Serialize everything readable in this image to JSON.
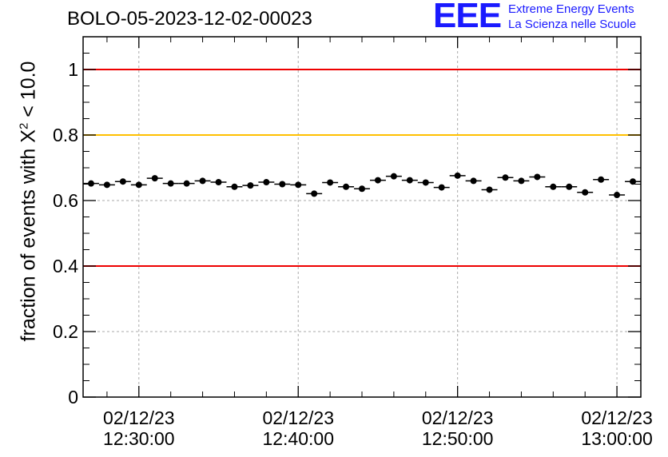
{
  "page_title": "BOLO-05-2023-12-02-00023",
  "logo": {
    "mark": "EEE",
    "line1": "Extreme Energy Events",
    "line2": "La Scienza nelle Scuole"
  },
  "y_axis_label": {
    "prefix": "fraction of events with X",
    "sup": "2",
    "suffix": " < 10.0"
  },
  "colors": {
    "red_line": "#ee0000",
    "yellow_line": "#ffc000",
    "markers": "#000000"
  },
  "chart_data": {
    "type": "scatter",
    "title": "BOLO-05-2023-12-02-00023",
    "xlabel": "",
    "ylabel": "fraction of events with X^2 < 10.0",
    "ylim": [
      0,
      1.1
    ],
    "xlim_minutes": [
      -3.5,
      31.5
    ],
    "grid": true,
    "x_tick_minutes": [
      0,
      10,
      20,
      30
    ],
    "x_tick_labels": [
      {
        "date": "02/12/23",
        "time": "12:30:00"
      },
      {
        "date": "02/12/23",
        "time": "12:40:00"
      },
      {
        "date": "02/12/23",
        "time": "12:50:00"
      },
      {
        "date": "02/12/23",
        "time": "13:00:00"
      }
    ],
    "y_ticks": [
      0,
      0.2,
      0.4,
      0.6,
      0.8,
      1
    ],
    "y_tick_labels": [
      "0",
      "0.2",
      "0.4",
      "0.6",
      "0.8",
      "1"
    ],
    "reference_lines": [
      {
        "y": 1.0,
        "color": "red"
      },
      {
        "y": 0.8,
        "color": "yellow"
      },
      {
        "y": 0.4,
        "color": "red"
      }
    ],
    "bin_width_minutes": 1,
    "series": [
      {
        "name": "fraction",
        "x_minutes": [
          -3,
          -2,
          -1,
          0,
          1,
          2,
          3,
          4,
          5,
          6,
          7,
          8,
          9,
          10,
          11,
          12,
          13,
          14,
          15,
          16,
          17,
          18,
          19,
          20,
          21,
          22,
          23,
          24,
          25,
          26,
          27,
          28,
          29,
          30,
          31
        ],
        "values": [
          0.652,
          0.648,
          0.658,
          0.648,
          0.668,
          0.652,
          0.652,
          0.66,
          0.656,
          0.642,
          0.646,
          0.656,
          0.65,
          0.648,
          0.621,
          0.655,
          0.642,
          0.636,
          0.662,
          0.674,
          0.662,
          0.655,
          0.64,
          0.676,
          0.66,
          0.633,
          0.67,
          0.66,
          0.672,
          0.642,
          0.642,
          0.625,
          0.664,
          0.617,
          0.658
        ],
        "errors": [
          0.008,
          0.008,
          0.008,
          0.008,
          0.008,
          0.008,
          0.008,
          0.008,
          0.008,
          0.008,
          0.008,
          0.008,
          0.008,
          0.008,
          0.008,
          0.008,
          0.008,
          0.008,
          0.008,
          0.008,
          0.008,
          0.008,
          0.008,
          0.008,
          0.008,
          0.008,
          0.008,
          0.008,
          0.008,
          0.008,
          0.008,
          0.008,
          0.008,
          0.008,
          0.008
        ]
      }
    ]
  }
}
